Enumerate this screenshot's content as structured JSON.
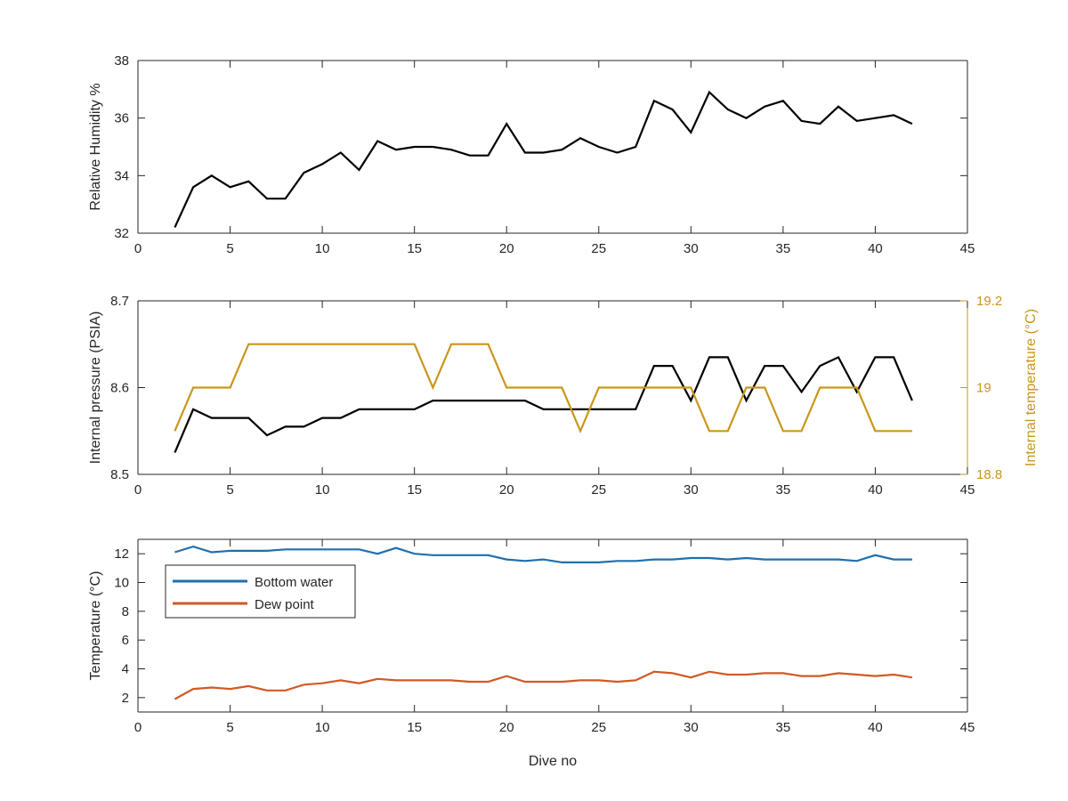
{
  "chart_data": [
    {
      "type": "line",
      "ylabel": "Relative Humidity %",
      "xlim": [
        0,
        45
      ],
      "ylim": [
        32,
        38
      ],
      "xticks": [
        0,
        5,
        10,
        15,
        20,
        25,
        30,
        35,
        40,
        45
      ],
      "yticks": [
        32,
        34,
        36,
        38
      ],
      "grid": false,
      "series": [
        {
          "color": "#000000",
          "x": [
            2,
            3,
            4,
            5,
            6,
            7,
            8,
            9,
            10,
            11,
            12,
            13,
            14,
            15,
            16,
            17,
            18,
            19,
            20,
            21,
            22,
            23,
            24,
            25,
            26,
            27,
            28,
            29,
            30,
            31,
            32,
            33,
            34,
            35,
            36,
            37,
            38,
            39,
            40,
            41,
            42
          ],
          "values": [
            32.2,
            33.6,
            34.0,
            33.6,
            33.8,
            33.2,
            33.2,
            34.1,
            34.4,
            34.8,
            34.2,
            35.2,
            34.9,
            35.0,
            35.0,
            34.9,
            34.7,
            34.7,
            35.8,
            34.8,
            34.8,
            34.9,
            35.3,
            35.0,
            34.8,
            35.0,
            36.6,
            36.3,
            35.5,
            36.9,
            36.3,
            36.0,
            36.4,
            36.6,
            35.9,
            35.8,
            36.4,
            35.9,
            36.0,
            36.1,
            35.8
          ]
        }
      ]
    },
    {
      "type": "line",
      "ylabel": "Internal pressure (PSIA)",
      "ylabel_right": "Internal temperature (°C)",
      "xlim": [
        0,
        45
      ],
      "ylim": [
        8.5,
        8.7
      ],
      "ylim_right": [
        18.8,
        19.2
      ],
      "xticks": [
        0,
        5,
        10,
        15,
        20,
        25,
        30,
        35,
        40,
        45
      ],
      "yticks": [
        8.5,
        8.6,
        8.7
      ],
      "ytick_labels": [
        "8.5",
        "8.6",
        "8.7"
      ],
      "yticks_right": [
        18.8,
        19,
        19.2
      ],
      "ytick_labels_right": [
        "18.8",
        "19",
        "19.2"
      ],
      "grid": false,
      "right_axis_color": "#c9961a",
      "series": [
        {
          "axis": "left",
          "color": "#000000",
          "x": [
            2,
            3,
            4,
            5,
            6,
            7,
            8,
            9,
            10,
            11,
            12,
            13,
            14,
            15,
            16,
            17,
            18,
            19,
            20,
            21,
            22,
            23,
            24,
            25,
            26,
            27,
            28,
            29,
            30,
            31,
            32,
            33,
            34,
            35,
            36,
            37,
            38,
            39,
            40,
            41,
            42
          ],
          "values": [
            8.525,
            8.575,
            8.565,
            8.565,
            8.565,
            8.545,
            8.555,
            8.555,
            8.565,
            8.565,
            8.575,
            8.575,
            8.575,
            8.575,
            8.585,
            8.585,
            8.585,
            8.585,
            8.585,
            8.585,
            8.575,
            8.575,
            8.575,
            8.575,
            8.575,
            8.575,
            8.625,
            8.625,
            8.585,
            8.635,
            8.635,
            8.585,
            8.625,
            8.625,
            8.595,
            8.625,
            8.635,
            8.595,
            8.635,
            8.635,
            8.585
          ]
        },
        {
          "axis": "right",
          "color": "#c9961a",
          "x": [
            2,
            3,
            4,
            5,
            6,
            7,
            8,
            9,
            10,
            11,
            12,
            13,
            14,
            15,
            16,
            17,
            18,
            19,
            20,
            21,
            22,
            23,
            24,
            25,
            26,
            27,
            28,
            29,
            30,
            31,
            32,
            33,
            34,
            35,
            36,
            37,
            38,
            39,
            40,
            41,
            42
          ],
          "values": [
            18.9,
            19.0,
            19.0,
            19.0,
            19.1,
            19.1,
            19.1,
            19.1,
            19.1,
            19.1,
            19.1,
            19.1,
            19.1,
            19.1,
            19.0,
            19.1,
            19.1,
            19.1,
            19.0,
            19.0,
            19.0,
            19.0,
            18.9,
            19.0,
            19.0,
            19.0,
            19.0,
            19.0,
            19.0,
            18.9,
            18.9,
            19.0,
            19.0,
            18.9,
            18.9,
            19.0,
            19.0,
            19.0,
            18.9,
            18.9,
            18.9
          ]
        }
      ]
    },
    {
      "type": "line",
      "xlabel": "Dive no",
      "ylabel": "Temperature (°C)",
      "xlim": [
        0,
        45
      ],
      "ylim": [
        1,
        13
      ],
      "xticks": [
        0,
        5,
        10,
        15,
        20,
        25,
        30,
        35,
        40,
        45
      ],
      "yticks": [
        2,
        4,
        6,
        8,
        10,
        12
      ],
      "grid": false,
      "legend": "top-left",
      "series": [
        {
          "name": "Bottom water",
          "color": "#1f6fae",
          "x": [
            2,
            3,
            4,
            5,
            6,
            7,
            8,
            9,
            10,
            11,
            12,
            13,
            14,
            15,
            16,
            17,
            18,
            19,
            20,
            21,
            22,
            23,
            24,
            25,
            26,
            27,
            28,
            29,
            30,
            31,
            32,
            33,
            34,
            35,
            36,
            37,
            38,
            39,
            40,
            41,
            42
          ],
          "values": [
            12.1,
            12.5,
            12.1,
            12.2,
            12.2,
            12.2,
            12.3,
            12.3,
            12.3,
            12.3,
            12.3,
            12.0,
            12.4,
            12.0,
            11.9,
            11.9,
            11.9,
            11.9,
            11.6,
            11.5,
            11.6,
            11.4,
            11.4,
            11.4,
            11.5,
            11.5,
            11.6,
            11.6,
            11.7,
            11.7,
            11.6,
            11.7,
            11.6,
            11.6,
            11.6,
            11.6,
            11.6,
            11.5,
            11.9,
            11.6,
            11.6
          ]
        },
        {
          "name": "Dew point",
          "color": "#d05a25",
          "x": [
            2,
            3,
            4,
            5,
            6,
            7,
            8,
            9,
            10,
            11,
            12,
            13,
            14,
            15,
            16,
            17,
            18,
            19,
            20,
            21,
            22,
            23,
            24,
            25,
            26,
            27,
            28,
            29,
            30,
            31,
            32,
            33,
            34,
            35,
            36,
            37,
            38,
            39,
            40,
            41,
            42
          ],
          "values": [
            1.9,
            2.6,
            2.7,
            2.6,
            2.8,
            2.5,
            2.5,
            2.9,
            3.0,
            3.2,
            3.0,
            3.3,
            3.2,
            3.2,
            3.2,
            3.2,
            3.1,
            3.1,
            3.5,
            3.1,
            3.1,
            3.1,
            3.2,
            3.2,
            3.1,
            3.2,
            3.8,
            3.7,
            3.4,
            3.8,
            3.6,
            3.6,
            3.7,
            3.7,
            3.5,
            3.5,
            3.7,
            3.6,
            3.5,
            3.6,
            3.4
          ]
        }
      ]
    }
  ]
}
